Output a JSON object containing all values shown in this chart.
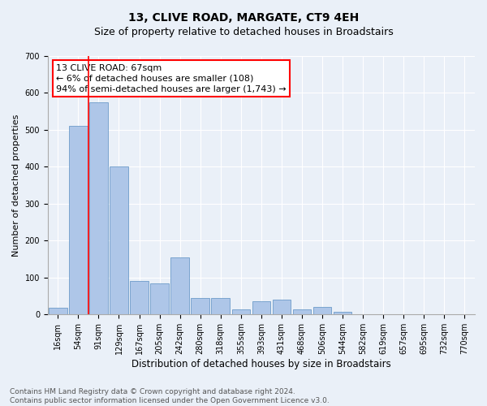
{
  "title": "13, CLIVE ROAD, MARGATE, CT9 4EH",
  "subtitle": "Size of property relative to detached houses in Broadstairs",
  "xlabel": "Distribution of detached houses by size in Broadstairs",
  "ylabel": "Number of detached properties",
  "bar_labels": [
    "16sqm",
    "54sqm",
    "91sqm",
    "129sqm",
    "167sqm",
    "205sqm",
    "242sqm",
    "280sqm",
    "318sqm",
    "355sqm",
    "393sqm",
    "431sqm",
    "468sqm",
    "506sqm",
    "544sqm",
    "582sqm",
    "619sqm",
    "657sqm",
    "695sqm",
    "732sqm",
    "770sqm"
  ],
  "bar_values": [
    18,
    510,
    575,
    400,
    90,
    85,
    155,
    45,
    45,
    15,
    35,
    40,
    15,
    20,
    8,
    0,
    0,
    0,
    0,
    0,
    0
  ],
  "bar_color": "#aec6e8",
  "bar_edge_color": "#5a8fc2",
  "vline_bin_index": 1,
  "annotation_line1": "13 CLIVE ROAD: 67sqm",
  "annotation_line2": "← 6% of detached houses are smaller (108)",
  "annotation_line3": "94% of semi-detached houses are larger (1,743) →",
  "ylim": [
    0,
    700
  ],
  "yticks": [
    0,
    100,
    200,
    300,
    400,
    500,
    600,
    700
  ],
  "background_color": "#eaf0f8",
  "plot_bg_color": "#eaf0f8",
  "footer_line1": "Contains HM Land Registry data © Crown copyright and database right 2024.",
  "footer_line2": "Contains public sector information licensed under the Open Government Licence v3.0.",
  "title_fontsize": 10,
  "subtitle_fontsize": 9,
  "xlabel_fontsize": 8.5,
  "ylabel_fontsize": 8,
  "tick_fontsize": 7,
  "annotation_fontsize": 8,
  "footer_fontsize": 6.5
}
